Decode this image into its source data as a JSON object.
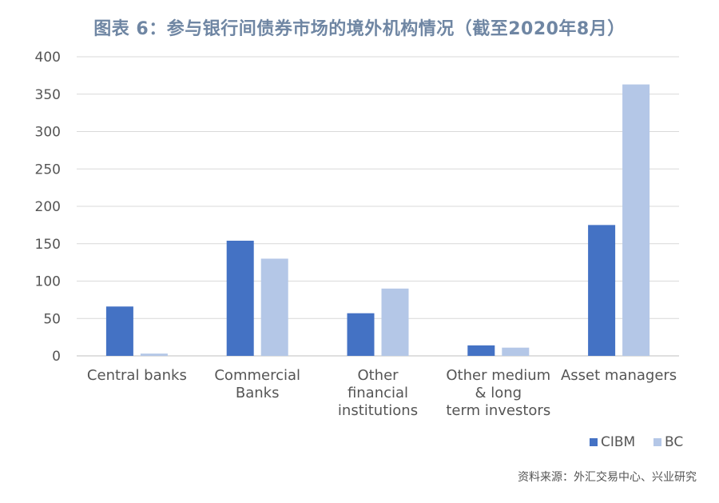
{
  "chart_data": {
    "type": "bar",
    "title": "图表 6：参与银行间债券市场的境外机构情况（截至2020年8月）",
    "categories": [
      [
        "Central banks"
      ],
      [
        "Commercial",
        "Banks"
      ],
      [
        "Other",
        "financial",
        "institutions"
      ],
      [
        "Other medium",
        "& long",
        "term investors"
      ],
      [
        "Asset managers"
      ]
    ],
    "series": [
      {
        "name": "CIBM",
        "color": "#4472c4",
        "values": [
          66,
          154,
          57,
          14,
          175
        ]
      },
      {
        "name": "BC",
        "color": "#b4c7e7",
        "values": [
          3,
          130,
          90,
          11,
          363
        ]
      }
    ],
    "ylim": [
      0,
      400
    ],
    "yticks": [
      "0",
      "50",
      "100",
      "150",
      "200",
      "250",
      "300",
      "350",
      "400"
    ],
    "grid": true,
    "legend_position": "bottom-right"
  },
  "source": "资料来源：外汇交易中心、兴业研究"
}
